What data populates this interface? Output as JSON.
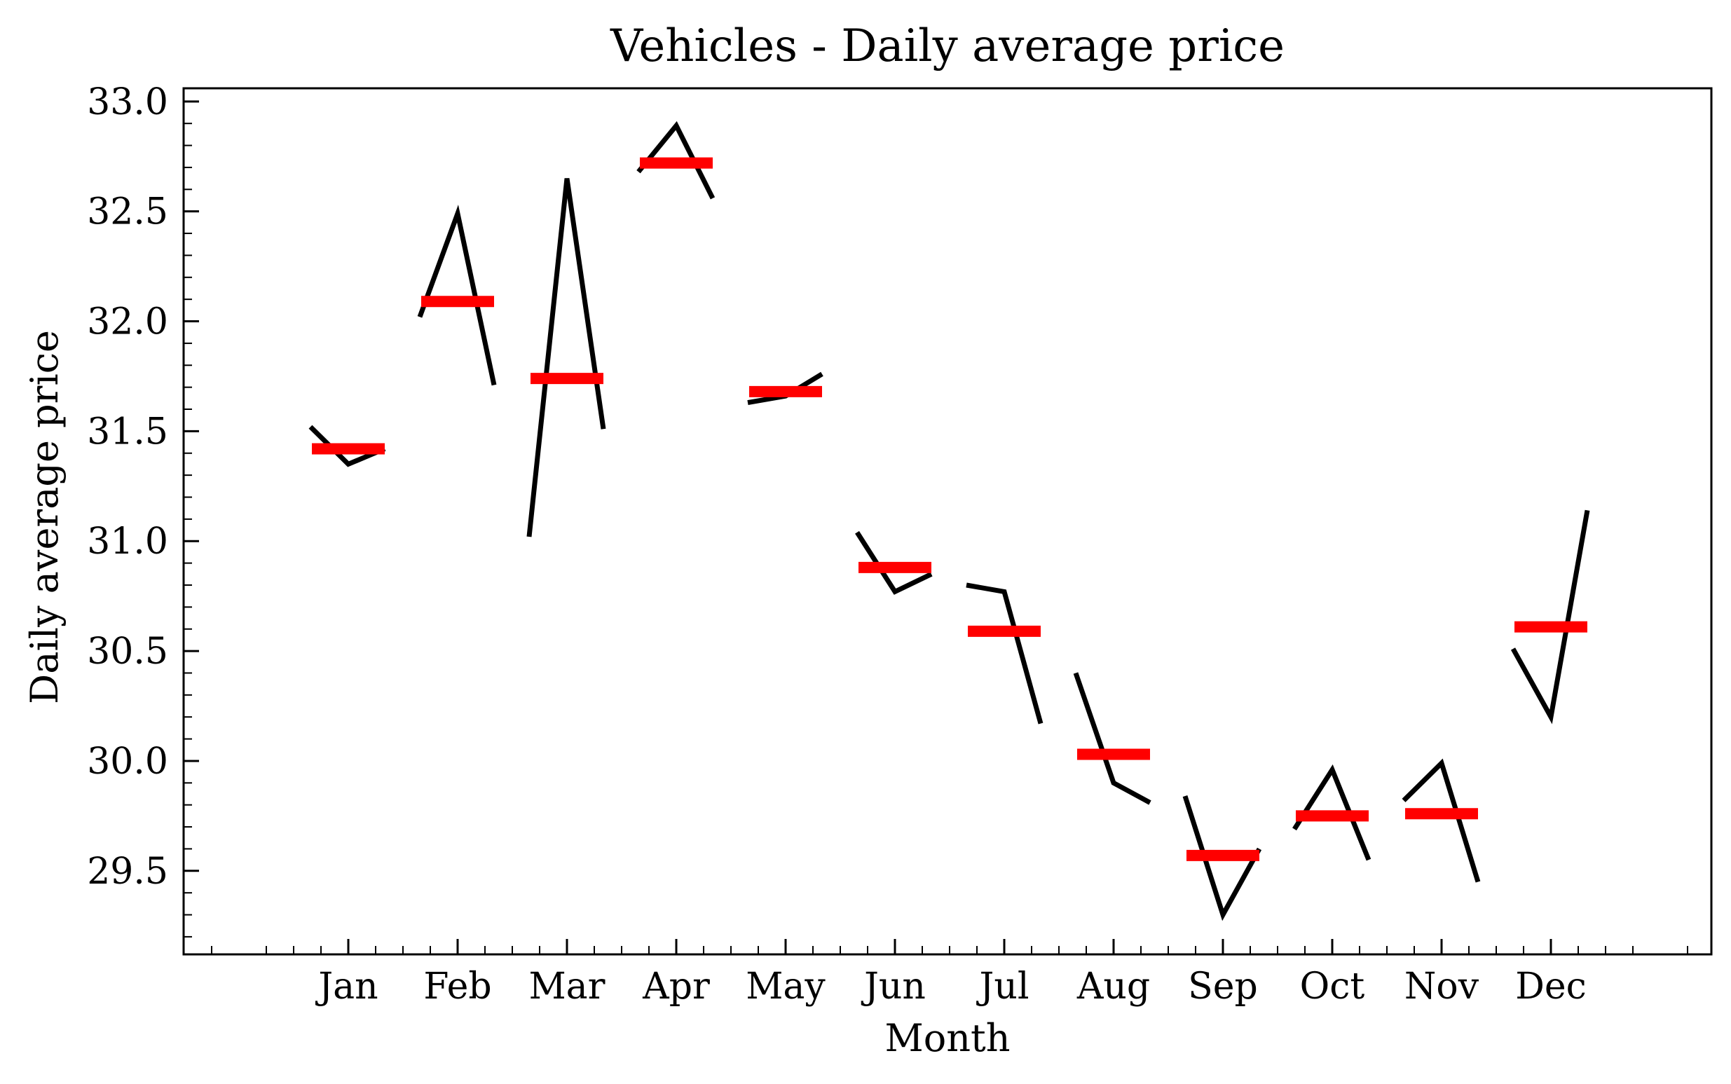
{
  "chart_data": {
    "type": "line",
    "title": "Vehicles - Daily average price",
    "xlabel": "Month",
    "ylabel": "Daily average price",
    "ylim": [
      29.12,
      33.06
    ],
    "yticks": [
      "29.5",
      "30.0",
      "30.5",
      "31.0",
      "31.5",
      "32.0",
      "32.5",
      "33.0"
    ],
    "grid": false,
    "categories": [
      "Jan",
      "Feb",
      "Mar",
      "Apr",
      "May",
      "Jun",
      "Jul",
      "Aug",
      "Sep",
      "Oct",
      "Nov",
      "Dec"
    ],
    "series": [
      {
        "values": [
          [
            31.52,
            31.35,
            31.42
          ],
          [
            32.02,
            32.49,
            31.71
          ],
          [
            31.02,
            32.65,
            31.51
          ],
          [
            32.68,
            32.89,
            32.56
          ],
          [
            31.63,
            31.66,
            31.76
          ],
          [
            31.04,
            30.77,
            30.85
          ],
          [
            30.8,
            30.77,
            30.17
          ],
          [
            30.4,
            29.9,
            29.81
          ],
          [
            29.84,
            29.3,
            29.6
          ],
          [
            29.69,
            29.96,
            29.55
          ],
          [
            29.82,
            29.99,
            29.45
          ],
          [
            30.51,
            30.2,
            31.14
          ]
        ]
      }
    ],
    "mean_values": [
      31.42,
      32.09,
      31.74,
      32.72,
      31.68,
      30.88,
      30.59,
      30.03,
      29.57,
      29.75,
      29.76,
      30.61
    ],
    "colors": {
      "line": "#000000",
      "mean": "#ff0000"
    }
  }
}
